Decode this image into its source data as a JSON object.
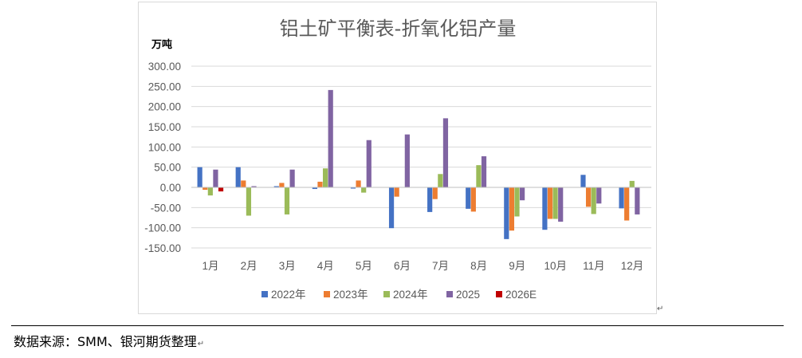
{
  "chart_data": {
    "type": "bar",
    "title": "铝土矿平衡表-折氧化铝产量",
    "ylabel": "万吨",
    "xlabel": "",
    "ylim": [
      -150,
      300
    ],
    "yticks": [
      "300.00",
      "250.00",
      "200.00",
      "150.00",
      "100.00",
      "50.00",
      "0.00",
      "-50.00",
      "-100.00",
      "-150.00"
    ],
    "categories": [
      "1月",
      "2月",
      "3月",
      "4月",
      "5月",
      "6月",
      "7月",
      "8月",
      "9月",
      "10月",
      "11月",
      "12月"
    ],
    "series": [
      {
        "name": "2022年",
        "color": "#4472c4",
        "values": [
          50,
          50,
          3,
          -4,
          -3,
          -101,
          -61,
          -53,
          -128,
          -105,
          31,
          -52
        ]
      },
      {
        "name": "2023年",
        "color": "#ed7d31",
        "values": [
          -6,
          17,
          11,
          14,
          17,
          -23,
          -29,
          -60,
          -107,
          -78,
          -48,
          -82
        ]
      },
      {
        "name": "2024年",
        "color": "#9bbb59",
        "values": [
          -20,
          -70,
          -67,
          47,
          -13,
          1,
          33,
          55,
          -72,
          -78,
          -66,
          16
        ]
      },
      {
        "name": "2025",
        "color": "#8064a2",
        "values": [
          44,
          3,
          44,
          241,
          117,
          131,
          171,
          77,
          -32,
          -85,
          -40,
          -67
        ]
      },
      {
        "name": "2026E",
        "color": "#c00000",
        "values": [
          -10,
          null,
          null,
          null,
          null,
          null,
          null,
          null,
          null,
          null,
          null,
          null
        ]
      }
    ],
    "grid": true,
    "legend": "bottom"
  },
  "footer": {
    "source": "数据来源：SMM、银河期货整理",
    "mark": "↵"
  },
  "marks": {
    "after_chart": "↵"
  }
}
